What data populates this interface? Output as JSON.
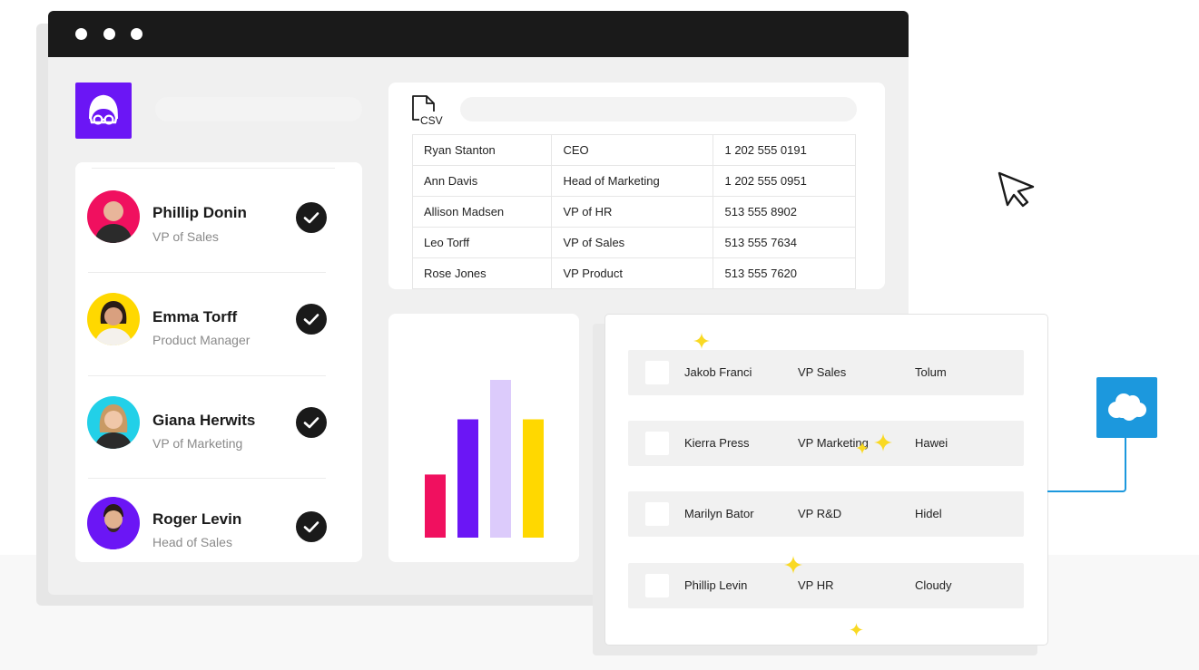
{
  "colors": {
    "brand": "#6b16f5",
    "titlebar": "#1a1a1a",
    "salesforce": "#1c98dd",
    "sparkle": "#f9d923",
    "avatar_backgrounds": [
      "#f0105f",
      "#ffd800",
      "#22d0e8",
      "#6b16f5"
    ]
  },
  "logo": {
    "icon": "nerd-face-logo-icon"
  },
  "contacts": [
    {
      "name": "Phillip Donin",
      "role": "VP of Sales",
      "status_icon": "check-icon"
    },
    {
      "name": "Emma Torff",
      "role": "Product Manager",
      "status_icon": "check-icon"
    },
    {
      "name": "Giana Herwits",
      "role": "VP of Marketing",
      "status_icon": "check-icon"
    },
    {
      "name": "Roger Levin",
      "role": "Head of Sales",
      "status_icon": "check-icon"
    }
  ],
  "csv": {
    "icon": "csv-file-icon",
    "icon_label": "CSV",
    "rows": [
      [
        "Ryan Stanton",
        "CEO",
        "1 202 555 0191"
      ],
      [
        "Ann Davis",
        "Head of Marketing",
        "1 202 555 0951"
      ],
      [
        "Allison Madsen",
        "VP of HR",
        "513 555 8902"
      ],
      [
        "Leo Torff",
        "VP of Sales",
        "513 555 7634"
      ],
      [
        "Rose Jones",
        "VP Product",
        "513 555 7620"
      ]
    ]
  },
  "chart_data": {
    "type": "bar",
    "categories": [
      "",
      "",
      "",
      ""
    ],
    "values": [
      40,
      75,
      100,
      75
    ],
    "colors": [
      "#f0105f",
      "#6b16f5",
      "#dccbfb",
      "#ffd800"
    ],
    "ylim": [
      0,
      100
    ],
    "title": "",
    "xlabel": "",
    "ylabel": "",
    "grid": false
  },
  "crm": {
    "rows": [
      {
        "name": "Jakob Franci",
        "role": "VP Sales",
        "company": "Tolum"
      },
      {
        "name": "Kierra Press",
        "role": "VP Marketing",
        "company": "Hawei"
      },
      {
        "name": "Marilyn Bator",
        "role": "VP R&D",
        "company": "Hidel"
      },
      {
        "name": "Phillip Levin",
        "role": "VP HR",
        "company": "Cloudy"
      }
    ]
  },
  "integration": {
    "icon": "salesforce-cloud-icon"
  },
  "pointer": {
    "icon": "mouse-cursor-icon"
  }
}
